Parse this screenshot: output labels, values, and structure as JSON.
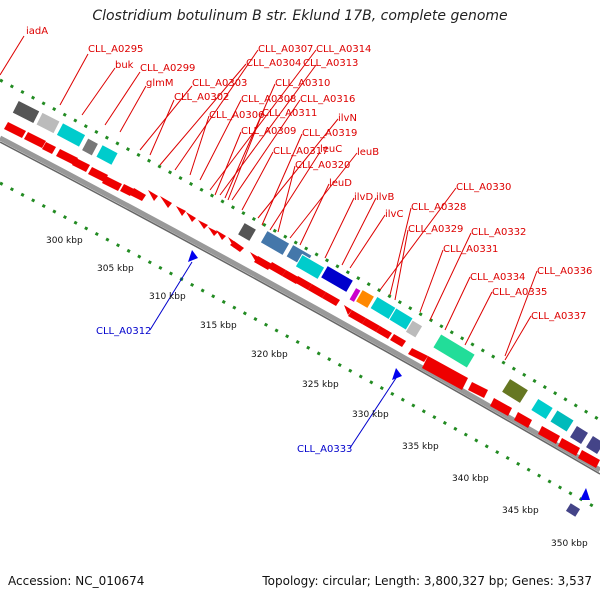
{
  "title": "Clostridium botulinum B str. Eklund 17B, complete genome",
  "footer": {
    "accession": "Accession: NC_010674",
    "topology": "Topology: circular; Length: 3,800,327 bp; Genes: 3,537"
  },
  "tick_labels": [
    "300 kbp",
    "305 kbp",
    "310 kbp",
    "315 kbp",
    "320 kbp",
    "325 kbp",
    "330 kbp",
    "335 kbp",
    "340 kbp",
    "345 kbp",
    "350 kbp"
  ],
  "gene_labels_red": [
    "iadA",
    "CLL_A0295",
    "buk",
    "CLL_A0299",
    "glmM",
    "CLL_A0303",
    "CLL_A0302",
    "CLL_A0304",
    "CLL_A0307",
    "CLL_A0314",
    "CLL_A0313",
    "CLL_A0310",
    "CLL_A0308",
    "CLL_A0316",
    "CLL_A0306",
    "CLL_A0311",
    "ilvN",
    "CLL_A0309",
    "CLL_A0319",
    "CLL_A0317",
    "leuC",
    "leuB",
    "CLL_A0320",
    "leuD",
    "ilvD",
    "ilvB",
    "CLL_A0330",
    "ilvC",
    "CLL_A0328",
    "CLL_A0329",
    "CLL_A0332",
    "CLL_A0331",
    "CLL_A0334",
    "CLL_A0336",
    "CLL_A0335",
    "CLL_A0337"
  ],
  "gene_labels_blue": [
    "CLL_A0312",
    "CLL_A0333"
  ],
  "colors": {
    "gene_red": "#ee0000",
    "backbone": "#999999",
    "tick_green": "#228b22",
    "label_red": "#dd0000",
    "label_blue": "#0000cc"
  }
}
